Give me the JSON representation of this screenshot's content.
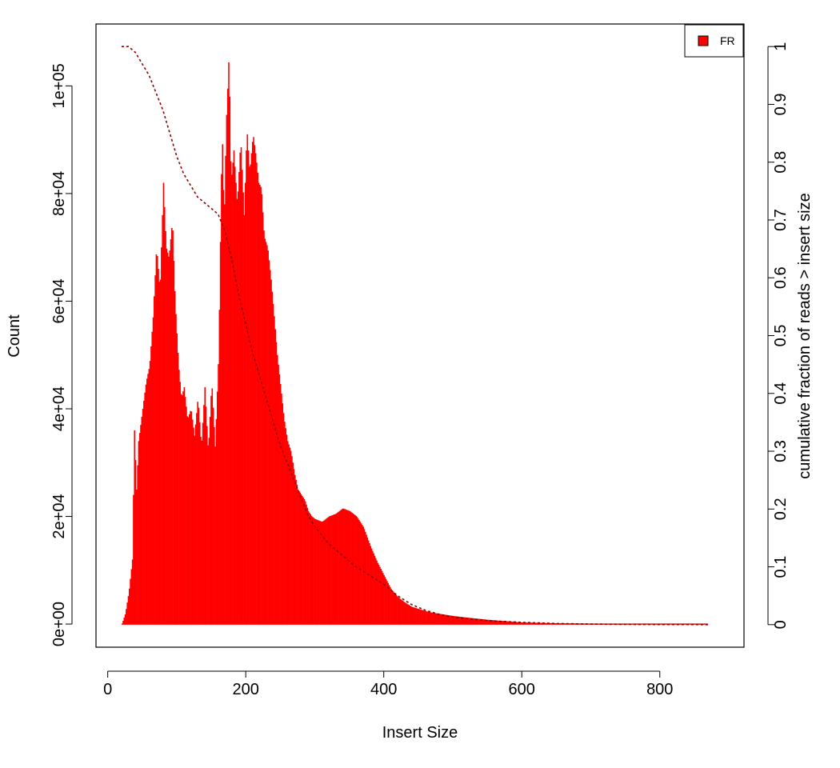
{
  "chart_data": {
    "type": "bar",
    "xlabel": "Insert Size",
    "ylabel": "Count",
    "y2label": "cumulative fraction of reads > insert size",
    "xlim": [
      -17,
      922
    ],
    "ylim": [
      -4300,
      111500
    ],
    "y2lim": [
      -0.039,
      1.039
    ],
    "x_ticks": [
      0,
      200,
      400,
      600,
      800
    ],
    "x_tick_labels": [
      "0",
      "200",
      "400",
      "600",
      "800"
    ],
    "y_ticks": [
      0,
      20000,
      40000,
      60000,
      80000,
      100000
    ],
    "y_tick_labels": [
      "0e+00",
      "2e+04",
      "4e+04",
      "6e+04",
      "8e+04",
      "1e+05"
    ],
    "y2_ticks": [
      0,
      0.1,
      0.2,
      0.3,
      0.4,
      0.5,
      0.6,
      0.7,
      0.8,
      0.9,
      1
    ],
    "y2_tick_labels": [
      "0",
      "0.1",
      "0.2",
      "0.3",
      "0.4",
      "0.5",
      "0.6",
      "0.7",
      "0.8",
      "0.9",
      "1"
    ],
    "legend": {
      "position": "top-right",
      "entries": [
        {
          "name": "FR",
          "color": "#ff0000"
        }
      ]
    },
    "bar_color": "#ff0000",
    "cumulative_color": "#8b0000",
    "series": [
      {
        "name": "FR",
        "kind": "histogram",
        "x": [
          20,
          25,
          30,
          35,
          38,
          41,
          44,
          50,
          55,
          60,
          65,
          70,
          75,
          80,
          84,
          88,
          93,
          97,
          102,
          106,
          110,
          115,
          120,
          125,
          130,
          135,
          140,
          145,
          150,
          155,
          160,
          165,
          168,
          171,
          175,
          178,
          182,
          187,
          192,
          197,
          201,
          205,
          210,
          214,
          218,
          222,
          226,
          231,
          236,
          240,
          245,
          250,
          255,
          260,
          265,
          270,
          275,
          280,
          285,
          290,
          295,
          300,
          310,
          320,
          330,
          340,
          350,
          360,
          370,
          380,
          390,
          400,
          410,
          420,
          430,
          440,
          450,
          460,
          470,
          480,
          500,
          520,
          550,
          580,
          600,
          650,
          700,
          750,
          800,
          850,
          870
        ],
        "values": [
          0,
          2000,
          6000,
          12000,
          36000,
          25000,
          34000,
          40000,
          45000,
          48000,
          57000,
          70000,
          62000,
          82000,
          70000,
          68000,
          75000,
          60000,
          48000,
          42000,
          44000,
          38000,
          40000,
          35000,
          42000,
          33000,
          44000,
          32000,
          45000,
          33000,
          50000,
          92000,
          75000,
          93000,
          106000,
          82000,
          88000,
          78000,
          90000,
          76000,
          92000,
          84000,
          91000,
          87000,
          82000,
          81000,
          72000,
          70000,
          64000,
          58000,
          50000,
          44000,
          38000,
          34000,
          32000,
          28000,
          25000,
          24000,
          23000,
          21000,
          20000,
          19500,
          19000,
          20000,
          20500,
          21500,
          21000,
          20000,
          18000,
          14500,
          11500,
          9000,
          6500,
          5000,
          4000,
          3200,
          2800,
          2400,
          2100,
          1900,
          1500,
          1200,
          800,
          500,
          300,
          150,
          80,
          30,
          10,
          0
        ]
      },
      {
        "name": "cumulative fraction of reads > insert size",
        "kind": "line",
        "axis": "right",
        "x": [
          20,
          30,
          40,
          50,
          60,
          70,
          80,
          90,
          100,
          110,
          120,
          130,
          140,
          150,
          160,
          170,
          180,
          190,
          200,
          210,
          220,
          230,
          240,
          250,
          260,
          270,
          280,
          290,
          300,
          320,
          340,
          360,
          380,
          400,
          420,
          440,
          460,
          480,
          500,
          550,
          600,
          650,
          700,
          750,
          800,
          850,
          870
        ],
        "values": [
          1.0,
          1.0,
          0.99,
          0.97,
          0.95,
          0.92,
          0.89,
          0.85,
          0.81,
          0.78,
          0.76,
          0.74,
          0.73,
          0.72,
          0.71,
          0.68,
          0.63,
          0.57,
          0.52,
          0.47,
          0.43,
          0.39,
          0.35,
          0.31,
          0.28,
          0.25,
          0.22,
          0.19,
          0.17,
          0.14,
          0.12,
          0.1,
          0.085,
          0.07,
          0.05,
          0.035,
          0.025,
          0.018,
          0.013,
          0.007,
          0.004,
          0.002,
          0.001,
          0.0005,
          0.0002,
          0.0001,
          0.0
        ]
      }
    ]
  }
}
